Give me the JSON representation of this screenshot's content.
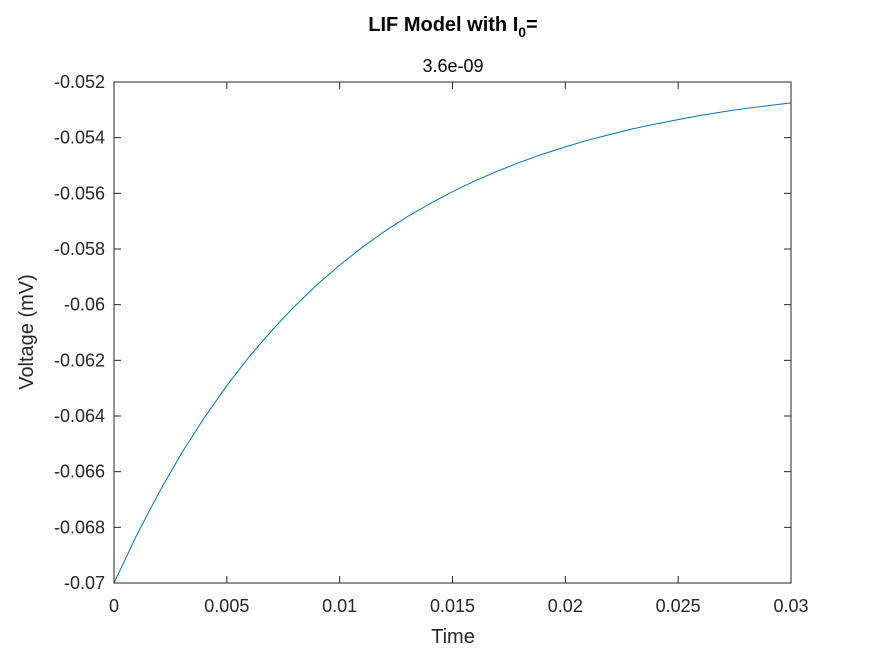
{
  "chart_data": {
    "type": "line",
    "title_main": "LIF Model with I",
    "title_subscript": "0",
    "title_suffix": "=",
    "subtitle": "3.6e-09",
    "xlabel": "Time",
    "ylabel": "Voltage (mV)",
    "xlim": [
      0,
      0.03
    ],
    "ylim": [
      -0.07,
      -0.052
    ],
    "x_ticks": [
      0,
      0.005,
      0.01,
      0.015,
      0.02,
      0.025,
      0.03
    ],
    "x_tick_labels": [
      "0",
      "0.005",
      "0.01",
      "0.015",
      "0.02",
      "0.025",
      "0.03"
    ],
    "y_ticks": [
      -0.07,
      -0.068,
      -0.066,
      -0.064,
      -0.062,
      -0.06,
      -0.058,
      -0.056,
      -0.054,
      -0.052
    ],
    "y_tick_labels": [
      "-0.07",
      "-0.068",
      "-0.066",
      "-0.064",
      "-0.062",
      "-0.06",
      "-0.058",
      "-0.056",
      "-0.054",
      "-0.052"
    ],
    "grid": false,
    "line_color": "#0072BD",
    "series": [
      {
        "x": [
          0,
          0.001,
          0.002,
          0.003,
          0.004,
          0.005,
          0.006,
          0.007,
          0.008,
          0.009,
          0.01,
          0.011,
          0.012,
          0.013,
          0.014,
          0.015,
          0.016,
          0.017,
          0.018,
          0.019,
          0.02,
          0.021,
          0.022,
          0.023,
          0.024,
          0.025,
          0.026,
          0.027,
          0.028,
          0.029,
          0.03
        ],
        "values": [
          -0.07,
          -0.06829,
          -0.06674,
          -0.06533,
          -0.06406,
          -0.06291,
          -0.06186,
          -0.06092,
          -0.06006,
          -0.05928,
          -0.05858,
          -0.05794,
          -0.05736,
          -0.05684,
          -0.05637,
          -0.05594,
          -0.05555,
          -0.0552,
          -0.05488,
          -0.05459,
          -0.05433,
          -0.05409,
          -0.05388,
          -0.05368,
          -0.05351,
          -0.05335,
          -0.0532,
          -0.05307,
          -0.05295,
          -0.05285,
          -0.05275
        ]
      }
    ]
  }
}
